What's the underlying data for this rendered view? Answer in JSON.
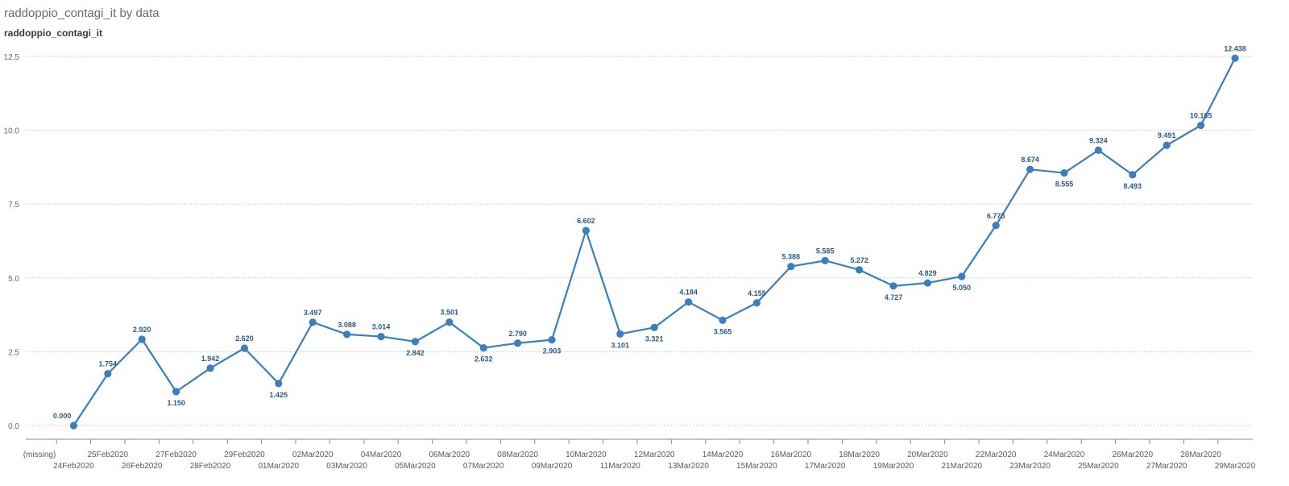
{
  "header": {
    "title": "raddoppio_contagi_it by data",
    "y_axis_title": "raddoppio_contagi_it"
  },
  "chart_data": {
    "type": "line",
    "title": "raddoppio_contagi_it by data",
    "xlabel": "",
    "ylabel": "raddoppio_contagi_it",
    "ylim": [
      0,
      12.5
    ],
    "y_ticks": [
      "0.0",
      "2.5",
      "5.0",
      "7.5",
      "10.0",
      "12.5"
    ],
    "y_tick_values": [
      0,
      2.5,
      5,
      7.5,
      10,
      12.5
    ],
    "grid": true,
    "line_color": "#3b7ebd",
    "categories": [
      "(missing)",
      "24Feb2020",
      "25Feb2020",
      "26Feb2020",
      "27Feb2020",
      "28Feb2020",
      "29Feb2020",
      "01Mar2020",
      "02Mar2020",
      "03Mar2020",
      "04Mar2020",
      "05Mar2020",
      "06Mar2020",
      "07Mar2020",
      "08Mar2020",
      "09Mar2020",
      "10Mar2020",
      "11Mar2020",
      "12Mar2020",
      "13Mar2020",
      "14Mar2020",
      "15Mar2020",
      "16Mar2020",
      "17Mar2020",
      "18Mar2020",
      "19Mar2020",
      "20Mar2020",
      "21Mar2020",
      "22Mar2020",
      "23Mar2020",
      "24Mar2020",
      "25Mar2020",
      "26Mar2020",
      "27Mar2020",
      "28Mar2020",
      "29Mar2020"
    ],
    "values": [
      null,
      0.0,
      1.754,
      2.92,
      1.15,
      1.942,
      2.62,
      1.425,
      3.497,
      3.088,
      3.014,
      2.842,
      3.501,
      2.632,
      2.79,
      2.903,
      6.602,
      3.101,
      3.321,
      4.184,
      3.565,
      4.155,
      5.388,
      5.585,
      5.272,
      4.727,
      4.829,
      5.05,
      6.775,
      8.674,
      8.555,
      9.324,
      8.493,
      9.491,
      10.165,
      12.438
    ],
    "value_labels": [
      "",
      "0.000",
      "1.754",
      "2.920",
      "1.150",
      "1.942",
      "2.620",
      "1.425",
      "3.497",
      "3.088",
      "3.014",
      "2.842",
      "3.501",
      "2.632",
      "2.790",
      "2.903",
      "6.602",
      "3.101",
      "3.321",
      "4.184",
      "3.565",
      "4.155",
      "5.388",
      "5.585",
      "5.272",
      "4.727",
      "4.829",
      "5.050",
      "6.775",
      "8.674",
      "8.555",
      "9.324",
      "8.493",
      "9.491",
      "10.165",
      "12.438"
    ],
    "label_above": [
      false,
      true,
      true,
      true,
      false,
      true,
      true,
      false,
      true,
      true,
      true,
      false,
      true,
      false,
      true,
      false,
      true,
      false,
      false,
      true,
      false,
      true,
      true,
      true,
      true,
      false,
      true,
      false,
      true,
      true,
      false,
      true,
      false,
      true,
      true,
      true
    ]
  }
}
